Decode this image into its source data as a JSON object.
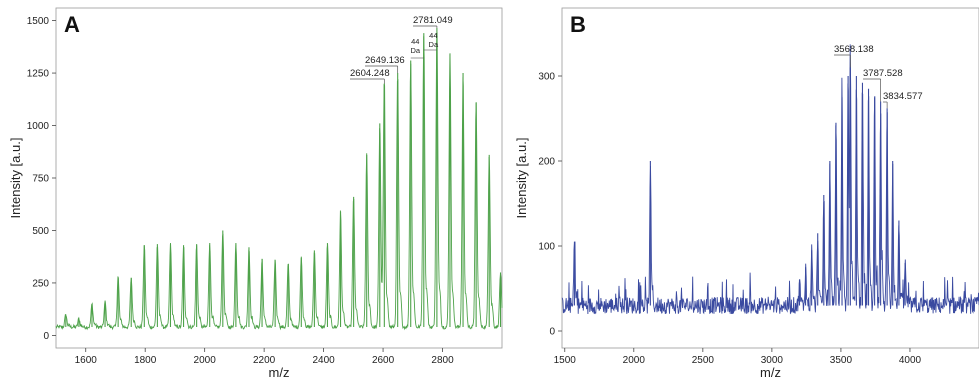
{
  "chart_data": [
    {
      "panel": "A",
      "type": "line",
      "xlabel": "m/z",
      "ylabel": "Intensity [a.u.]",
      "xlim": [
        1500,
        3000
      ],
      "ylim": [
        -60,
        1560
      ],
      "x_ticks": [
        1600,
        1800,
        2000,
        2200,
        2400,
        2600,
        2800
      ],
      "y_ticks": [
        0,
        250,
        500,
        750,
        1000,
        1250,
        1500
      ],
      "series": [
        {
          "color": "#4ea24a",
          "baseline": 40,
          "peaks": {
            "x": [
              1533,
              1577,
              1621,
              1665,
              1709,
              1753,
              1797,
              1841,
              1885,
              1929,
              1973,
              2017,
              2061,
              2105,
              2149,
              2193,
              2237,
              2281,
              2325,
              2369,
              2413,
              2457,
              2501,
              2545,
              2589,
              2604.248,
              2649.136,
              2693,
              2737,
              2781.049,
              2825,
              2869,
              2913,
              2957,
              2995
            ],
            "y": [
              100,
              80,
              150,
              160,
              280,
              275,
              430,
              435,
              435,
              430,
              435,
              440,
              500,
              440,
              420,
              365,
              360,
              340,
              370,
              405,
              440,
              590,
              660,
              860,
              1010,
              1200,
              1250,
              1310,
              1440,
              1465,
              1340,
              1250,
              1110,
              860,
              300
            ]
          }
        }
      ],
      "annotations": [
        {
          "label": "2604.248",
          "x": 2604.248
        },
        {
          "label": "2649.136",
          "x": 2649.136
        },
        {
          "label": "2781.049",
          "x": 2781.049
        },
        {
          "label": "44\nDa"
        },
        {
          "label": "44\nDa"
        }
      ]
    },
    {
      "panel": "B",
      "type": "line",
      "xlabel": "m/z",
      "ylabel": "Intensity [a.u.]",
      "xlim": [
        1480,
        4500
      ],
      "ylim": [
        -20,
        380
      ],
      "x_ticks": [
        1500,
        2000,
        2500,
        3000,
        3500,
        4000
      ],
      "y_ticks": [
        0,
        100,
        200,
        300
      ],
      "series": [
        {
          "color": "#3a4aa0",
          "baseline": 30,
          "peaks": {
            "x": [
              1570,
              2120,
              3200,
              3244,
              3288,
              3332,
              3376,
              3420,
              3464,
              3508,
              3552,
              3568.138,
              3612,
              3656,
              3700,
              3744,
              3787.528,
              3834.577,
              3875,
              3920,
              3965
            ],
            "y": [
              105,
              200,
              60,
              75,
              95,
              115,
              160,
              200,
              245,
              275,
              300,
              310,
              300,
              292,
              285,
              275,
              270,
              262,
              200,
              130,
              80
            ]
          }
        }
      ],
      "annotations": [
        {
          "label": "3568.138",
          "x": 3568.138
        },
        {
          "label": "3787.528",
          "x": 3787.528
        },
        {
          "label": "3834.577",
          "x": 3834.577
        }
      ]
    }
  ]
}
